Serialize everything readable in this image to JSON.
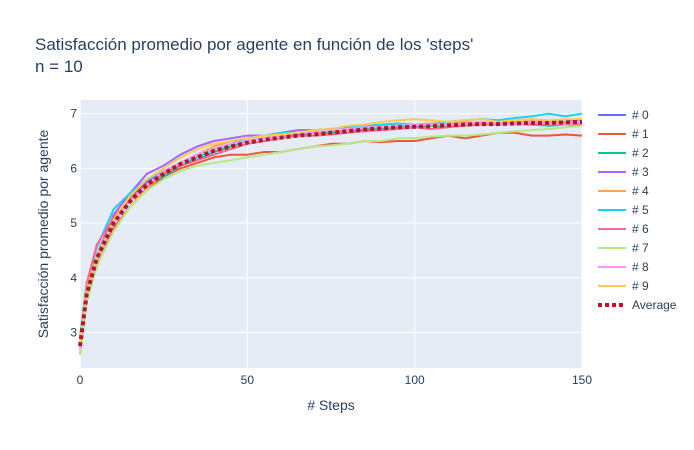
{
  "chart_data": {
    "type": "line",
    "title": "Satisfacción promedio por agente en función de los 'steps'",
    "subtitle": "n = 10",
    "xlabel": "# Steps",
    "ylabel": "Satisfacción promedio por agente",
    "xlim": [
      0,
      150
    ],
    "ylim": [
      2.35,
      7.25
    ],
    "xticks": [
      0,
      50,
      100,
      150
    ],
    "yticks": [
      3,
      4,
      5,
      6,
      7
    ],
    "grid": true,
    "legend_position": "right",
    "plot_background": "#e5ecf6",
    "x": [
      0,
      2,
      5,
      10,
      15,
      20,
      25,
      30,
      35,
      40,
      45,
      50,
      55,
      60,
      65,
      70,
      75,
      80,
      85,
      90,
      95,
      100,
      105,
      110,
      115,
      120,
      125,
      130,
      135,
      140,
      145,
      150
    ],
    "series": [
      {
        "name": "# 0",
        "color": "#636efa",
        "dash": "solid",
        "values": [
          2.7,
          3.7,
          4.3,
          5.0,
          5.45,
          5.75,
          5.95,
          6.1,
          6.25,
          6.35,
          6.45,
          6.5,
          6.55,
          6.6,
          6.62,
          6.65,
          6.65,
          6.7,
          6.7,
          6.72,
          6.75,
          6.75,
          6.78,
          6.8,
          6.8,
          6.82,
          6.8,
          6.85,
          6.82,
          6.85,
          6.85,
          6.85
        ]
      },
      {
        "name": "# 1",
        "color": "#ef553b",
        "dash": "solid",
        "values": [
          2.6,
          3.6,
          4.2,
          4.9,
          5.3,
          5.6,
          5.85,
          6.0,
          6.1,
          6.2,
          6.25,
          6.25,
          6.3,
          6.3,
          6.35,
          6.4,
          6.45,
          6.45,
          6.5,
          6.48,
          6.5,
          6.5,
          6.55,
          6.6,
          6.55,
          6.6,
          6.65,
          6.65,
          6.6,
          6.6,
          6.62,
          6.6
        ]
      },
      {
        "name": "# 2",
        "color": "#00cc96",
        "dash": "solid",
        "values": [
          2.8,
          3.8,
          4.35,
          5.05,
          5.4,
          5.7,
          5.85,
          6.05,
          6.15,
          6.3,
          6.4,
          6.5,
          6.55,
          6.6,
          6.65,
          6.7,
          6.65,
          6.7,
          6.75,
          6.7,
          6.75,
          6.8,
          6.78,
          6.75,
          6.8,
          6.82,
          6.8,
          6.85,
          6.8,
          6.78,
          6.8,
          6.8
        ]
      },
      {
        "name": "# 3",
        "color": "#ab63fa",
        "dash": "solid",
        "values": [
          2.75,
          3.75,
          4.4,
          5.15,
          5.55,
          5.9,
          6.05,
          6.25,
          6.4,
          6.5,
          6.55,
          6.6,
          6.6,
          6.65,
          6.7,
          6.7,
          6.72,
          6.75,
          6.8,
          6.78,
          6.78,
          6.8,
          6.82,
          6.8,
          6.85,
          6.8,
          6.82,
          6.85,
          6.9,
          6.85,
          6.85,
          6.9
        ]
      },
      {
        "name": "# 4",
        "color": "#ffa15a",
        "dash": "solid",
        "values": [
          2.7,
          3.65,
          4.25,
          4.85,
          5.3,
          5.65,
          5.9,
          6.1,
          6.25,
          6.4,
          6.5,
          6.55,
          6.6,
          6.6,
          6.65,
          6.65,
          6.7,
          6.7,
          6.75,
          6.78,
          6.8,
          6.8,
          6.82,
          6.85,
          6.85,
          6.82,
          6.85,
          6.85,
          6.88,
          6.85,
          6.85,
          6.85
        ]
      },
      {
        "name": "# 5",
        "color": "#19d3f3",
        "dash": "solid",
        "values": [
          2.9,
          3.9,
          4.55,
          5.25,
          5.55,
          5.8,
          5.95,
          6.05,
          6.2,
          6.35,
          6.45,
          6.55,
          6.6,
          6.65,
          6.65,
          6.7,
          6.72,
          6.75,
          6.78,
          6.8,
          6.82,
          6.8,
          6.8,
          6.85,
          6.88,
          6.9,
          6.88,
          6.92,
          6.95,
          7.0,
          6.95,
          7.0
        ]
      },
      {
        "name": "# 6",
        "color": "#ff6692",
        "dash": "solid",
        "values": [
          2.75,
          3.9,
          4.6,
          5.1,
          5.45,
          5.7,
          5.9,
          6.05,
          6.15,
          6.25,
          6.35,
          6.45,
          6.5,
          6.55,
          6.6,
          6.6,
          6.62,
          6.65,
          6.68,
          6.7,
          6.72,
          6.75,
          6.72,
          6.75,
          6.78,
          6.8,
          6.8,
          6.82,
          6.8,
          6.8,
          6.82,
          6.8
        ]
      },
      {
        "name": "# 7",
        "color": "#b6e880",
        "dash": "solid",
        "values": [
          2.6,
          3.55,
          4.2,
          4.85,
          5.3,
          5.6,
          5.8,
          5.95,
          6.05,
          6.1,
          6.15,
          6.2,
          6.25,
          6.3,
          6.35,
          6.4,
          6.42,
          6.45,
          6.5,
          6.5,
          6.55,
          6.55,
          6.58,
          6.6,
          6.6,
          6.62,
          6.65,
          6.68,
          6.7,
          6.72,
          6.75,
          6.78
        ]
      },
      {
        "name": "# 8",
        "color": "#ff97ff",
        "dash": "solid",
        "values": [
          2.7,
          3.7,
          4.3,
          5.0,
          5.4,
          5.7,
          5.95,
          6.1,
          6.25,
          6.35,
          6.45,
          6.5,
          6.55,
          6.6,
          6.65,
          6.65,
          6.7,
          6.72,
          6.75,
          6.75,
          6.78,
          6.8,
          6.8,
          6.8,
          6.82,
          6.85,
          6.82,
          6.8,
          6.85,
          6.82,
          6.8,
          6.85
        ]
      },
      {
        "name": "# 9",
        "color": "#fecb52",
        "dash": "solid",
        "values": [
          2.8,
          3.8,
          4.4,
          5.05,
          5.5,
          5.8,
          6.0,
          6.2,
          6.35,
          6.45,
          6.5,
          6.55,
          6.6,
          6.62,
          6.65,
          6.7,
          6.72,
          6.78,
          6.8,
          6.85,
          6.88,
          6.9,
          6.88,
          6.85,
          6.88,
          6.9,
          6.85,
          6.88,
          6.9,
          6.88,
          6.9,
          6.9
        ]
      },
      {
        "name": "Average",
        "color": "#b2182b",
        "dash": "dot",
        "values": [
          2.75,
          3.7,
          4.35,
          5.0,
          5.4,
          5.7,
          5.9,
          6.08,
          6.2,
          6.32,
          6.4,
          6.47,
          6.52,
          6.56,
          6.6,
          6.62,
          6.65,
          6.68,
          6.71,
          6.73,
          6.75,
          6.76,
          6.77,
          6.79,
          6.8,
          6.81,
          6.81,
          6.82,
          6.83,
          6.83,
          6.84,
          6.85
        ]
      }
    ]
  }
}
